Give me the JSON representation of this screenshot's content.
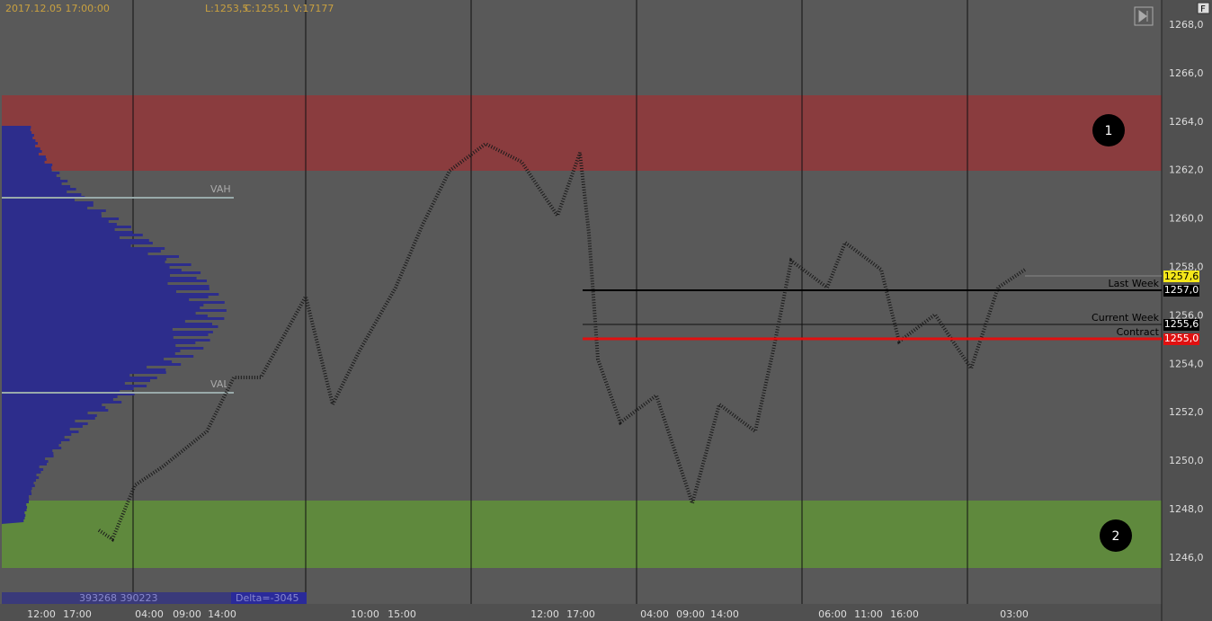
{
  "header": {
    "datetime": "2017.12.05 17:00:00",
    "low": "L:1253,5",
    "close": "C:1255,1",
    "volume": "V:17177"
  },
  "price_axis": [
    "1268,0",
    "1266,0",
    "1264,0",
    "1262,0",
    "1260,0",
    "1258,0",
    "1256,0",
    "1254,0",
    "1252,0",
    "1250,0",
    "1248,0",
    "1246,0"
  ],
  "time_axis": [
    "12:00",
    "17:00",
    "04:00",
    "09:00",
    "14:00",
    "10:00",
    "15:00",
    "12:00",
    "17:00",
    "04:00",
    "09:00",
    "14:00",
    "06:00",
    "11:00",
    "16:00",
    "03:00"
  ],
  "profile": {
    "vah": "VAH",
    "val": "VAL"
  },
  "levels": [
    {
      "label": "Last Week",
      "price": "1257,0"
    },
    {
      "label": "Current Week",
      "price": "1255,6"
    },
    {
      "label": "Contract",
      "price": "1255,0"
    }
  ],
  "last_price": "1257,6",
  "zones": [
    "1",
    "2"
  ],
  "footer": {
    "volumes": "393268 390223",
    "delta": "Delta=-3045"
  },
  "button": "F"
}
